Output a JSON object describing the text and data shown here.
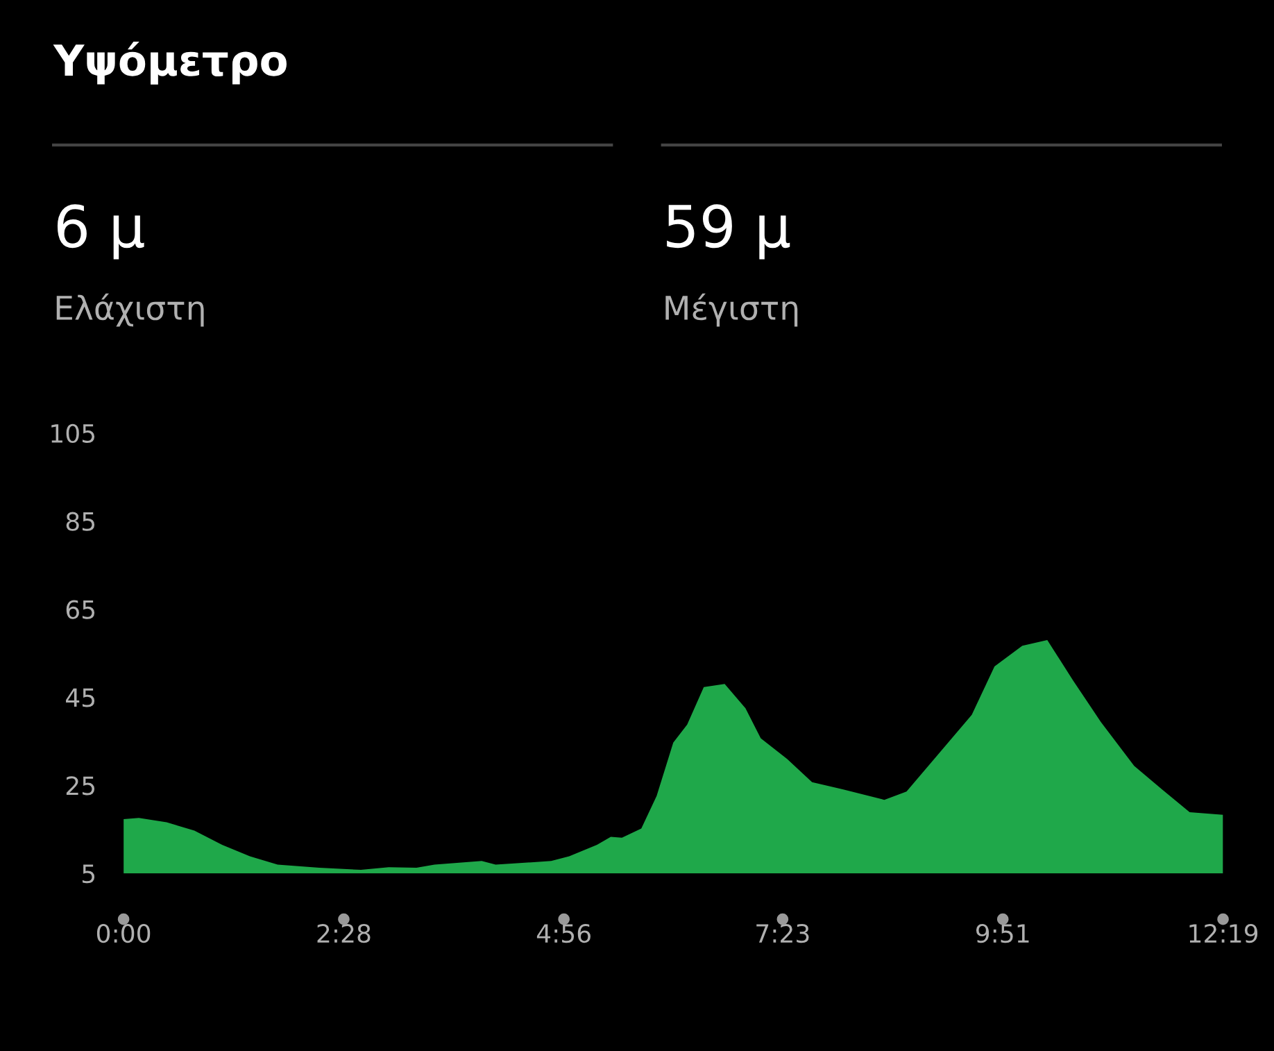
{
  "chart_data": {
    "type": "area",
    "title": "Υψόμετρο",
    "annotations": [
      "6 μ",
      "Ελάχιστη",
      "59 μ",
      "Μέγιστη"
    ],
    "x": [
      0,
      0.171,
      0.482,
      0.793,
      1.104,
      1.415,
      1.726,
      2.193,
      2.659,
      2.97,
      3.281,
      3.483,
      4.012,
      4.168,
      4.79,
      4.992,
      5.303,
      5.458,
      5.583,
      5.8,
      5.972,
      6.158,
      6.314,
      6.5,
      6.734,
      6.967,
      7.138,
      7.433,
      7.713,
      8.055,
      8.522,
      8.771,
      9.082,
      9.502,
      9.757,
      10.068,
      10.348,
      10.637,
      10.948,
      11.321,
      11.632,
      11.943,
      12.317
    ],
    "series": [
      {
        "color": "#1fa84a",
        "values": [
          17.3,
          17.6,
          16.6,
          14.7,
          11.5,
          8.9,
          7.0,
          6.3,
          5.8,
          6.4,
          6.3,
          7.0,
          7.8,
          7.0,
          7.8,
          8.9,
          11.5,
          13.3,
          13.1,
          15.2,
          22.6,
          34.7,
          38.8,
          47.3,
          48.0,
          42.5,
          35.7,
          31.0,
          25.7,
          24.1,
          21.7,
          23.6,
          31.0,
          41.0,
          52.0,
          56.7,
          58.0,
          48.8,
          39.4,
          29.4,
          24.1,
          18.9,
          18.3
        ]
      }
    ],
    "xlim": [
      0,
      12.317
    ],
    "ylim": [
      5,
      105
    ],
    "xticks": [
      {
        "value": 0,
        "label": "0:00"
      },
      {
        "value": 2.467,
        "label": "2:28"
      },
      {
        "value": 4.933,
        "label": "4:56"
      },
      {
        "value": 7.383,
        "label": "7:23"
      },
      {
        "value": 9.85,
        "label": "9:51"
      },
      {
        "value": 12.317,
        "label": "12:19"
      }
    ],
    "yticks": [
      5,
      25,
      45,
      65,
      85,
      105
    ],
    "grid": false,
    "legend": false
  }
}
